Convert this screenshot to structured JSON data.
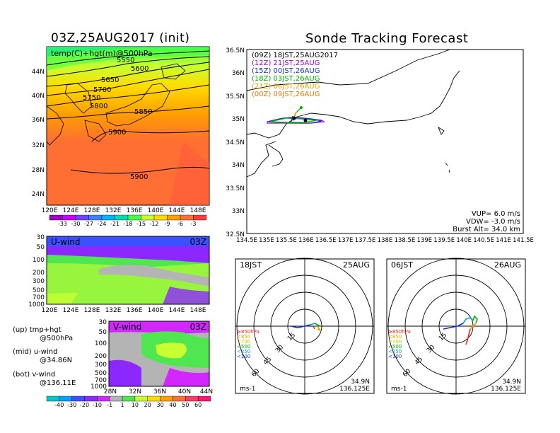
{
  "left": {
    "title": "03Z,25AUG2017 (init)",
    "map_label": "temp(C)+hgt(m)@500hPa",
    "lat_ticks": [
      "44N",
      "40N",
      "36N",
      "32N",
      "28N",
      "24N"
    ],
    "lon_ticks": [
      "120E",
      "124E",
      "128E",
      "132E",
      "136E",
      "140E",
      "144E",
      "148E"
    ],
    "height_labels": [
      "5550",
      "5600",
      "5650",
      "5700",
      "5750",
      "5800",
      "5850",
      "5900",
      "5900"
    ],
    "temp_colorbar": {
      "labels": [
        "-33",
        "-30",
        "-27",
        "-24",
        "-21",
        "-18",
        "-15",
        "-12",
        "-9",
        "-6",
        "-3"
      ],
      "colors": [
        "#a000c8",
        "#c800ff",
        "#6e46ff",
        "#3c82ff",
        "#00b4ff",
        "#00dcb4",
        "#46ff46",
        "#c8ff32",
        "#ffdc00",
        "#ffa000",
        "#ff6e32",
        "#ff3c3c"
      ]
    },
    "uwind": {
      "label": "U-wind",
      "time": "03Z",
      "levels": [
        "30",
        "50",
        "100",
        "200",
        "300",
        "500",
        "700",
        "1000"
      ],
      "lon_ticks": [
        "120E",
        "124E",
        "128E",
        "132E",
        "136E",
        "140E",
        "144E",
        "148E"
      ]
    },
    "vwind": {
      "label": "V-wind",
      "time": "03Z",
      "levels": [
        "30",
        "50",
        "100",
        "200",
        "300",
        "500",
        "700",
        "1000"
      ],
      "lat_ticks": [
        "28N",
        "32N",
        "36N",
        "40N",
        "44N"
      ]
    },
    "notes": [
      {
        "line1": "(up) tmp+hgt",
        "line2": "@500hPa"
      },
      {
        "line1": "(mid) u-wind",
        "line2": "@34.86N"
      },
      {
        "line1": "(bot) v-wind",
        "line2": "@136.11E"
      }
    ],
    "wind_colorbar": {
      "labels": [
        "-40",
        "-30",
        "-20",
        "-10",
        "-1",
        "1",
        "10",
        "20",
        "30",
        "40",
        "50",
        "60"
      ],
      "colors": [
        "#00c8c8",
        "#00a0ff",
        "#3c50ff",
        "#8c28ff",
        "#d228ff",
        "#b4b4b4",
        "#50e650",
        "#c8ff32",
        "#ffdc00",
        "#ffa000",
        "#ff6e32",
        "#ff3c64",
        "#ff1478"
      ]
    }
  },
  "right": {
    "title": "Sonde Tracking Forecast",
    "legend": [
      {
        "code": "(09Z)",
        "time": "18JST,25AUG2017",
        "color": "#000000"
      },
      {
        "code": "(12Z)",
        "time": "21JST,25AUG",
        "color": "#b400c8"
      },
      {
        "code": "(15Z)",
        "time": "00JST,26AUG",
        "color": "#1432dc"
      },
      {
        "code": "(18Z)",
        "time": "03JST,26AUG",
        "color": "#00b400"
      },
      {
        "code": "(21Z)",
        "time": "06JST,26AUG",
        "color": "#f0a000"
      },
      {
        "code": "(00Z)",
        "time": "09JST,26AUG",
        "color": "#f07800"
      }
    ],
    "lat_ticks": [
      "36.5N",
      "36N",
      "35.5N",
      "35N",
      "34.5N",
      "34N",
      "33.5N",
      "33N",
      "32.5N"
    ],
    "lon_ticks": [
      "134.5E",
      "135E",
      "135.5E",
      "136E",
      "136.5E",
      "137E",
      "137.5E",
      "138E",
      "138.5E",
      "139E",
      "139.5E",
      "140E",
      "140.5E",
      "141E",
      "141.5E"
    ],
    "params": [
      {
        "label": "VUP=",
        "value": "6.0 m/s"
      },
      {
        "label": "VDW=",
        "value": "-3.0 m/s"
      },
      {
        "label": "Burst Alt=",
        "value": "34.0 km"
      }
    ]
  },
  "hodographs": [
    {
      "time": "18JST",
      "date": "25AUG",
      "rings": [
        "15",
        "30",
        "45",
        "60"
      ],
      "unit": "ms-1",
      "lat": "34.9N",
      "lon": "136.125E"
    },
    {
      "time": "06JST",
      "date": "26AUG",
      "rings": [
        "15",
        "30",
        "45",
        "60"
      ],
      "unit": "ms-1",
      "lat": "34.9N",
      "lon": "136.125E"
    }
  ],
  "hodo_levels": [
    {
      "label": "≥850hPa",
      "color": "#ff2020"
    },
    {
      "label": "<850",
      "color": "#f0a000"
    },
    {
      "label": "<700",
      "color": "#d0c000"
    },
    {
      "label": "<500",
      "color": "#00b400"
    },
    {
      "label": "<250",
      "color": "#00a0c8"
    },
    {
      "label": "<100",
      "color": "#1432dc"
    }
  ]
}
